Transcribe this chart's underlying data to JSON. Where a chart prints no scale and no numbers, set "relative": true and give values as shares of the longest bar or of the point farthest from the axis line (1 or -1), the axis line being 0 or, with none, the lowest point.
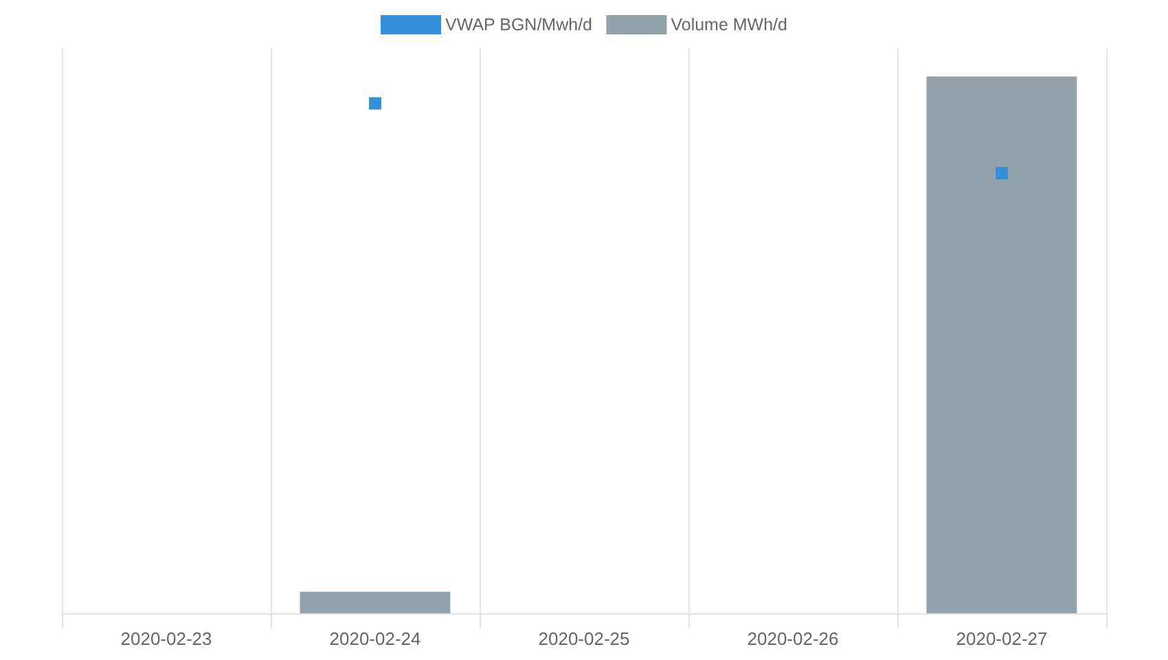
{
  "chart_data": {
    "type": "bar",
    "relative": true,
    "categories": [
      "2020-02-23",
      "2020-02-24",
      "2020-02-25",
      "2020-02-26",
      "2020-02-27"
    ],
    "series": [
      {
        "name": "VWAP BGN/Mwh/d",
        "type": "scatter",
        "color": "#3590dc",
        "values": [
          null,
          0.95,
          null,
          null,
          0.82
        ]
      },
      {
        "name": "Volume MWh/d",
        "color": "#93a1ab",
        "values": [
          null,
          0.04,
          null,
          null,
          1
        ]
      }
    ],
    "marker": "square",
    "grid": "x",
    "legend": "top"
  }
}
